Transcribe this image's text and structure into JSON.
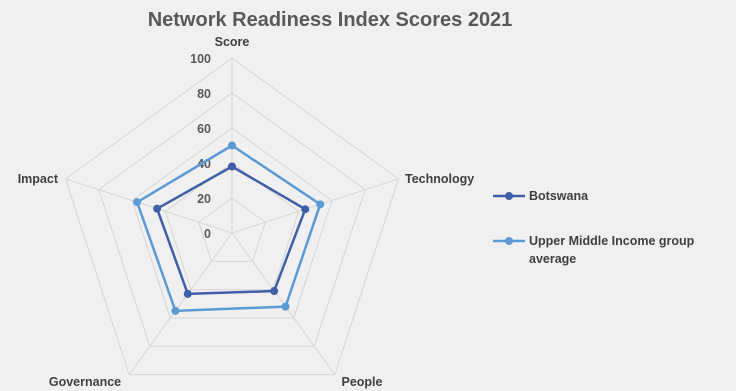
{
  "chart_data": {
    "type": "radar",
    "title": "Network Readiness Index Scores 2021",
    "axes": [
      "Score",
      "Technology",
      "People",
      "Governance",
      "Impact"
    ],
    "rlim": [
      0,
      100
    ],
    "ticks": [
      "0",
      "20",
      "40",
      "60",
      "80",
      "100"
    ],
    "tick_values": [
      0,
      20,
      40,
      60,
      80,
      100
    ],
    "grid": true,
    "legend_position": "right",
    "series": [
      {
        "name": "Botswana",
        "values": [
          38,
          44,
          41,
          43,
          45
        ],
        "color": "#3f5fa8"
      },
      {
        "name": "Upper Middle Income group average",
        "values": [
          50,
          53,
          52,
          55,
          57
        ],
        "color": "#5b9bd5"
      }
    ]
  }
}
